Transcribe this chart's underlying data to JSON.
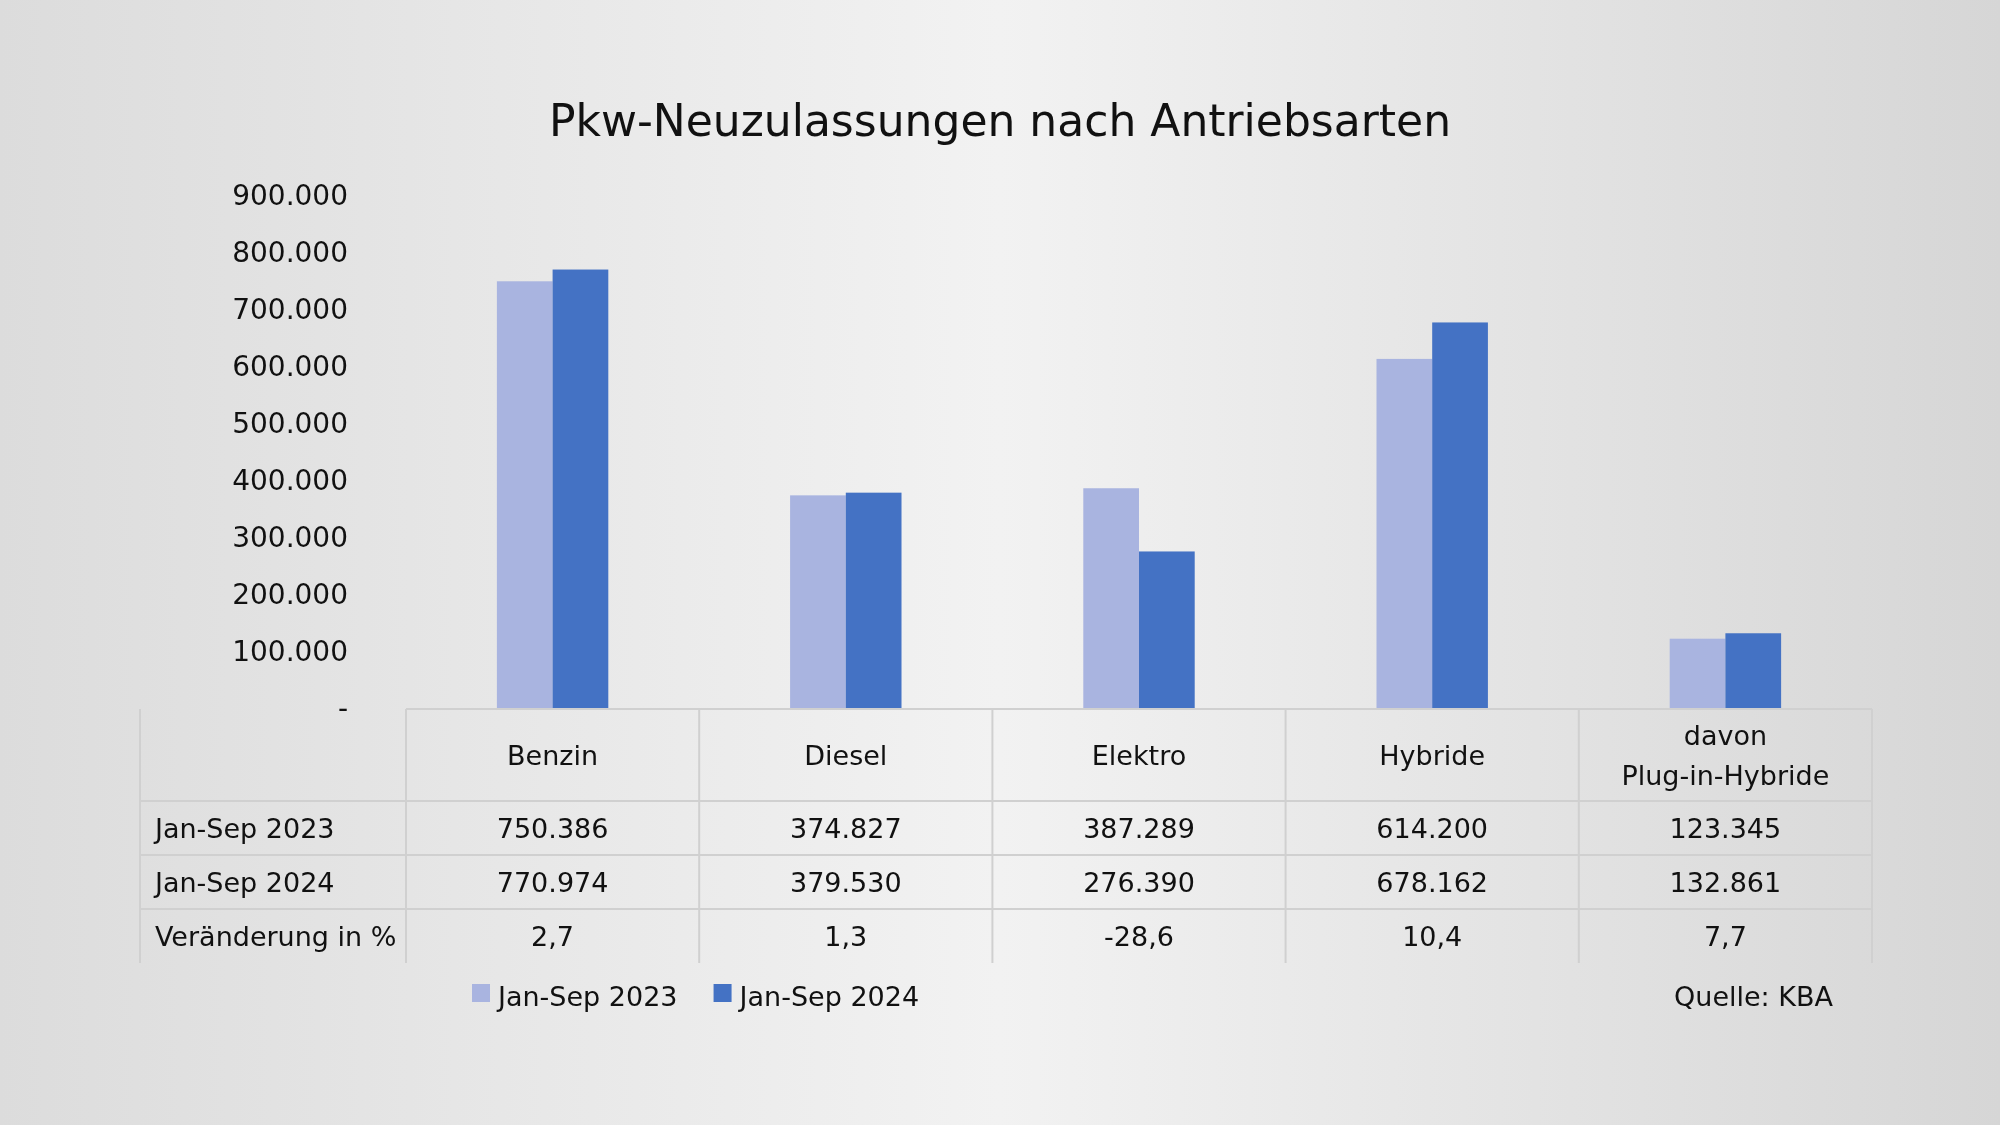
{
  "chart_data": {
    "type": "bar",
    "title": "Pkw-Neuzulassungen nach Antriebsarten",
    "categories": [
      "Benzin",
      "Diesel",
      "Elektro",
      "Hybride",
      "davon Plug-in-Hybride"
    ],
    "series": [
      {
        "name": "Jan-Sep 2023",
        "color": "#a9b4e0",
        "values": [
          750386,
          374827,
          387289,
          614200,
          123345
        ],
        "value_labels": [
          "750.386",
          "374.827",
          "387.289",
          "614.200",
          "123.345"
        ]
      },
      {
        "name": "Jan-Sep 2024",
        "color": "#4472c4",
        "values": [
          770974,
          379530,
          276390,
          678162,
          132861
        ],
        "value_labels": [
          "770.974",
          "379.530",
          "276.390",
          "678.162",
          "132.861"
        ]
      }
    ],
    "ylim": [
      0,
      900000
    ],
    "yticks": [
      {
        "value": 0,
        "label": "-"
      },
      {
        "value": 100000,
        "label": "100.000"
      },
      {
        "value": 200000,
        "label": "200.000"
      },
      {
        "value": 300000,
        "label": "300.000"
      },
      {
        "value": 400000,
        "label": "400.000"
      },
      {
        "value": 500000,
        "label": "500.000"
      },
      {
        "value": 600000,
        "label": "600.000"
      },
      {
        "value": 700000,
        "label": "700.000"
      },
      {
        "value": 800000,
        "label": "800.000"
      },
      {
        "value": 900000,
        "label": "900.000"
      }
    ],
    "grid": false,
    "legend": "bottom",
    "annotations": [
      "Veränderung in %",
      "2,7",
      "1,3",
      "-28,6",
      "10,4",
      "7,7",
      "Quelle: KBA"
    ]
  }
}
